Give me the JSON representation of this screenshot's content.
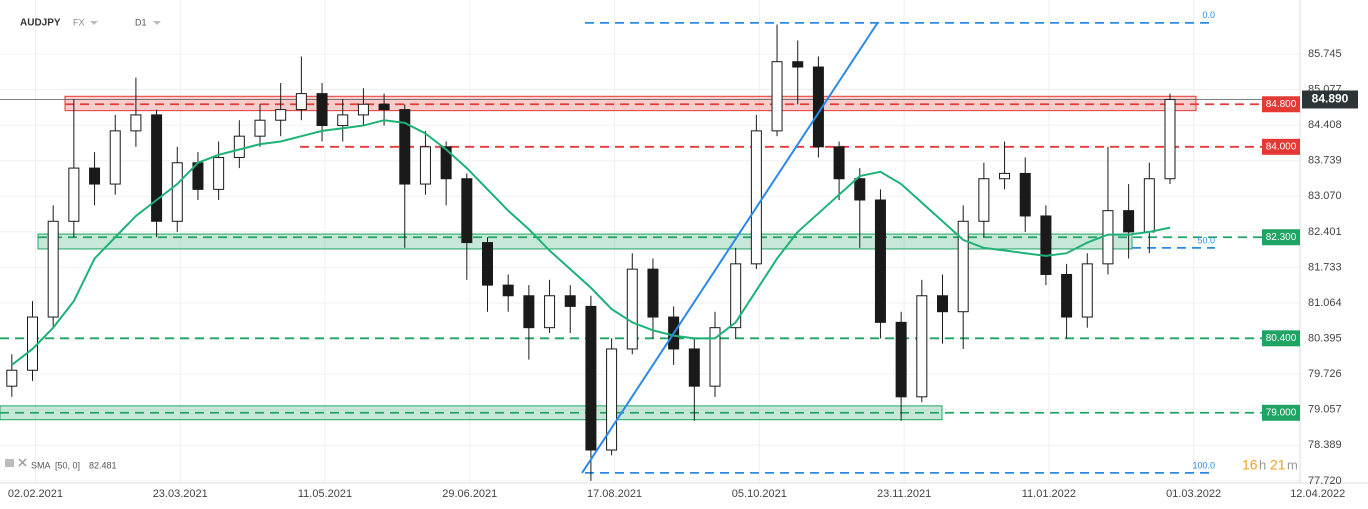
{
  "header": {
    "symbol": "AUDJPY",
    "market": "FX",
    "interval": "D1"
  },
  "chart_data": {
    "type": "candlestick",
    "x": [
      "2021-01-25",
      "2021-02-01",
      "2021-02-08",
      "2021-02-15",
      "2021-02-22",
      "2021-03-01",
      "2021-03-08",
      "2021-03-15",
      "2021-03-22",
      "2021-03-29",
      "2021-04-05",
      "2021-04-12",
      "2021-04-19",
      "2021-04-26",
      "2021-05-03",
      "2021-05-10",
      "2021-05-17",
      "2021-05-24",
      "2021-05-31",
      "2021-06-07",
      "2021-06-14",
      "2021-06-21",
      "2021-06-28",
      "2021-07-05",
      "2021-07-12",
      "2021-07-19",
      "2021-07-26",
      "2021-08-02",
      "2021-08-09",
      "2021-08-16",
      "2021-08-23",
      "2021-08-30",
      "2021-09-06",
      "2021-09-13",
      "2021-09-20",
      "2021-09-27",
      "2021-10-04",
      "2021-10-11",
      "2021-10-18",
      "2021-10-25",
      "2021-11-01",
      "2021-11-08",
      "2021-11-15",
      "2021-11-22",
      "2021-11-29",
      "2021-12-06",
      "2021-12-13",
      "2021-12-20",
      "2021-12-27",
      "2022-01-03",
      "2022-01-10",
      "2022-01-17",
      "2022-01-24",
      "2022-01-31",
      "2022-02-07",
      "2022-02-14",
      "2022-02-21"
    ],
    "open": [
      79.5,
      79.8,
      80.8,
      82.6,
      83.6,
      83.3,
      84.3,
      84.6,
      82.6,
      83.7,
      83.2,
      83.8,
      84.2,
      84.5,
      84.7,
      85.0,
      84.4,
      84.6,
      84.8,
      84.7,
      83.3,
      84.0,
      83.4,
      82.2,
      81.4,
      81.2,
      80.6,
      81.2,
      81.0,
      78.3,
      80.2,
      81.7,
      80.8,
      80.2,
      79.5,
      80.6,
      81.8,
      84.3,
      85.6,
      85.5,
      84.0,
      83.4,
      83.0,
      80.7,
      79.3,
      81.2,
      80.9,
      82.6,
      83.4,
      83.5,
      82.7,
      81.6,
      80.8,
      81.8,
      82.8,
      82.4,
      83.4
    ],
    "high": [
      80.1,
      81.1,
      82.9,
      84.9,
      83.9,
      84.6,
      85.3,
      84.7,
      84.0,
      83.9,
      84.1,
      84.5,
      84.8,
      85.2,
      85.7,
      85.2,
      84.9,
      85.1,
      85.0,
      84.8,
      84.3,
      84.1,
      83.5,
      82.3,
      81.6,
      81.4,
      81.5,
      81.4,
      81.2,
      80.4,
      82.0,
      81.9,
      81.0,
      80.4,
      80.9,
      82.1,
      84.6,
      86.3,
      86.0,
      85.7,
      84.1,
      83.6,
      83.2,
      80.9,
      81.5,
      81.6,
      82.9,
      83.7,
      84.1,
      83.8,
      82.9,
      81.8,
      82.0,
      84.0,
      83.3,
      83.7,
      85.0
    ],
    "low": [
      79.3,
      79.6,
      80.6,
      82.3,
      82.9,
      83.1,
      84.0,
      82.3,
      82.4,
      83.0,
      83.0,
      83.6,
      84.0,
      84.2,
      84.5,
      84.1,
      84.1,
      84.4,
      84.4,
      82.1,
      83.1,
      82.9,
      81.5,
      80.9,
      80.9,
      80.0,
      80.5,
      80.5,
      77.72,
      78.2,
      80.1,
      80.4,
      79.9,
      78.85,
      79.3,
      80.4,
      81.7,
      84.2,
      84.8,
      83.8,
      83.0,
      82.1,
      80.4,
      78.85,
      79.2,
      80.3,
      80.2,
      82.3,
      83.2,
      82.4,
      81.4,
      80.4,
      80.6,
      81.6,
      81.9,
      82.0,
      83.3
    ],
    "close": [
      79.8,
      80.8,
      82.6,
      83.6,
      83.3,
      84.3,
      84.6,
      82.6,
      83.7,
      83.2,
      83.8,
      84.2,
      84.5,
      84.7,
      85.0,
      84.4,
      84.6,
      84.8,
      84.7,
      83.3,
      84.0,
      83.4,
      82.2,
      81.4,
      81.2,
      80.6,
      81.2,
      81.0,
      78.3,
      80.2,
      81.7,
      80.8,
      80.2,
      79.5,
      80.6,
      81.8,
      84.3,
      85.6,
      85.5,
      84.0,
      83.4,
      83.0,
      80.7,
      79.3,
      81.2,
      80.9,
      82.6,
      83.4,
      83.5,
      82.7,
      81.6,
      80.8,
      81.8,
      82.8,
      82.4,
      83.4,
      84.89
    ],
    "up_color": "#ffffff",
    "down_color": "#1a1a1a",
    "sma": {
      "name": "SMA",
      "params": "[50, 0]",
      "last_label": "82.481",
      "color": "#1fb277",
      "values": [
        79.9,
        80.2,
        80.6,
        81.1,
        81.9,
        82.3,
        82.7,
        83.0,
        83.3,
        83.7,
        83.85,
        83.95,
        84.05,
        84.1,
        84.2,
        84.3,
        84.35,
        84.4,
        84.5,
        84.45,
        84.25,
        83.95,
        83.6,
        83.2,
        82.8,
        82.45,
        82.05,
        81.7,
        81.35,
        80.95,
        80.7,
        80.55,
        80.45,
        80.4,
        80.4,
        80.7,
        81.3,
        81.9,
        82.4,
        82.75,
        83.1,
        83.45,
        83.53,
        83.3,
        82.95,
        82.6,
        82.25,
        82.1,
        82.05,
        82.0,
        81.95,
        82.0,
        82.2,
        82.35,
        82.35,
        82.4,
        82.481
      ]
    },
    "levels": [
      {
        "value": 84.8,
        "label": "84.800",
        "color": "#e53935",
        "zone": [
          84.68,
          84.95
        ]
      },
      {
        "value": 84.0,
        "label": "84.000",
        "color": "#e53935"
      },
      {
        "value": 82.3,
        "label": "82.300",
        "color": "#1fa463",
        "zone": [
          82.08,
          82.36
        ]
      },
      {
        "value": 80.4,
        "label": "80.400",
        "color": "#1fa463"
      },
      {
        "value": 79.0,
        "label": "79.000",
        "color": "#1fa463",
        "zone": [
          78.87,
          79.13
        ]
      }
    ],
    "fib": [
      {
        "value": 86.33,
        "label": "0.0"
      },
      {
        "value": 82.1,
        "label": "50.0"
      },
      {
        "value": 77.87,
        "label": "100.0"
      }
    ],
    "fib_color": "#2b8ae6",
    "trendline": {
      "x": [
        "2021-08-06",
        "2021-11-14"
      ],
      "values": [
        77.87,
        86.33
      ],
      "color": "#2b8ae6"
    },
    "last_price": {
      "value": 84.89,
      "label": "84.890"
    },
    "xlim": [
      "2021-01-21",
      "2022-04-06"
    ],
    "xticks": [
      {
        "value": "2021-02-02",
        "label": "02.02.2021"
      },
      {
        "value": "2021-03-23",
        "label": "23.03.2021"
      },
      {
        "value": "2021-05-11",
        "label": "11.05.2021"
      },
      {
        "value": "2021-06-29",
        "label": "29.06.2021"
      },
      {
        "value": "2021-08-17",
        "label": "17.08.2021"
      },
      {
        "value": "2021-10-05",
        "label": "05.10.2021"
      },
      {
        "value": "2021-11-23",
        "label": "23.11.2021"
      },
      {
        "value": "2022-01-11",
        "label": "11.01.2022"
      },
      {
        "value": "2022-03-01",
        "label": "01.03.2022"
      },
      {
        "value": "2022-04-12",
        "label": "12.04.2022"
      }
    ],
    "ylim": [
      77.68,
      86.76
    ],
    "yticks": [
      {
        "value": 77.72,
        "label": "77.720"
      },
      78.389,
      79.057,
      79.726,
      80.395,
      81.064,
      81.733,
      82.401,
      {
        "value": 83.07,
        "label": "83.070"
      },
      83.739,
      84.408,
      85.077,
      85.745
    ],
    "grid": true
  },
  "timer": {
    "hours": "16",
    "h": "h",
    "minutes": "21",
    "m": "m"
  }
}
